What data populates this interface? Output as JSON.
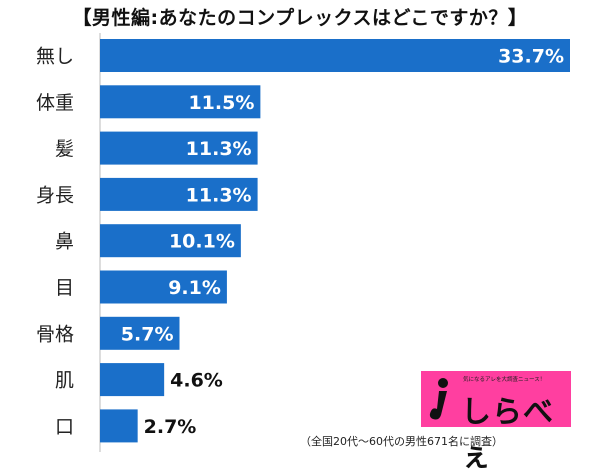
{
  "chart_data": {
    "type": "bar",
    "orientation": "horizontal",
    "title": "【男性編:あなたのコンプレックスはどこですか？】",
    "categories": [
      "無し",
      "体重",
      "髪",
      "身長",
      "鼻",
      "目",
      "骨格",
      "肌",
      "口"
    ],
    "values": [
      33.7,
      11.5,
      11.3,
      11.3,
      10.1,
      9.1,
      5.7,
      4.6,
      2.7
    ],
    "value_suffix": "%",
    "xlim": [
      0,
      33.7
    ],
    "grid": false,
    "legend": "none",
    "bar_color": "#1a6fc9"
  },
  "source_note": "（全国20代～60代の男性671名に調査）",
  "logo": {
    "text": "しらべぇ",
    "tagline": "気になるアレを大調査ニュース！",
    "color": "#ff3fa0"
  }
}
